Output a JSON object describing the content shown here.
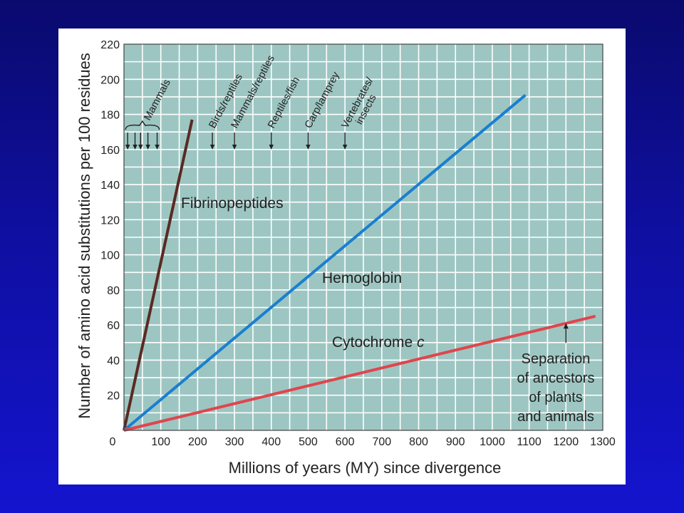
{
  "chart_data": {
    "type": "line",
    "xlabel": "Millions of years (MY) since divergence",
    "ylabel": "Number of amino acid substitutions per 100 residues",
    "xlim": [
      0,
      1300
    ],
    "ylim": [
      0,
      220
    ],
    "xticks": [
      0,
      100,
      200,
      300,
      400,
      500,
      600,
      700,
      800,
      900,
      1000,
      1100,
      1200,
      1300
    ],
    "yticks": [
      20,
      40,
      60,
      80,
      100,
      120,
      140,
      160,
      180,
      200,
      220
    ],
    "grid": true,
    "series": [
      {
        "name": "Fibrinopeptides",
        "color": "#5a2a22",
        "x": [
          0,
          185
        ],
        "y": [
          0,
          177
        ]
      },
      {
        "name": "Hemoglobin",
        "color": "#1a7fd0",
        "x": [
          0,
          1090
        ],
        "y": [
          0,
          191
        ]
      },
      {
        "name": "Cytochrome c",
        "name_main": "Cytochrome ",
        "name_italic": "c",
        "color": "#e0454d",
        "x": [
          0,
          1280
        ],
        "y": [
          0,
          65
        ]
      }
    ],
    "events": [
      {
        "label": "Mammals",
        "x": [
          10,
          30,
          45,
          65,
          90
        ]
      },
      {
        "label": "Birds/reptiles",
        "x": [
          240
        ]
      },
      {
        "label": "Mammals/reptiles",
        "x": [
          300
        ]
      },
      {
        "label": "Reptiles/fish",
        "x": [
          400
        ]
      },
      {
        "label": "Carp/lamprey",
        "x": [
          500
        ]
      },
      {
        "label": "Vertebrates/",
        "label_line2": "insects",
        "x": [
          600
        ]
      }
    ],
    "annotation": {
      "lines": [
        "Separation",
        "of ancestors",
        "of plants",
        "and animals"
      ],
      "x": 1200,
      "y": 62
    }
  },
  "colors": {
    "plot_background": "#9dc6c2",
    "gridline": "#ffffff",
    "frame": "#444444"
  }
}
